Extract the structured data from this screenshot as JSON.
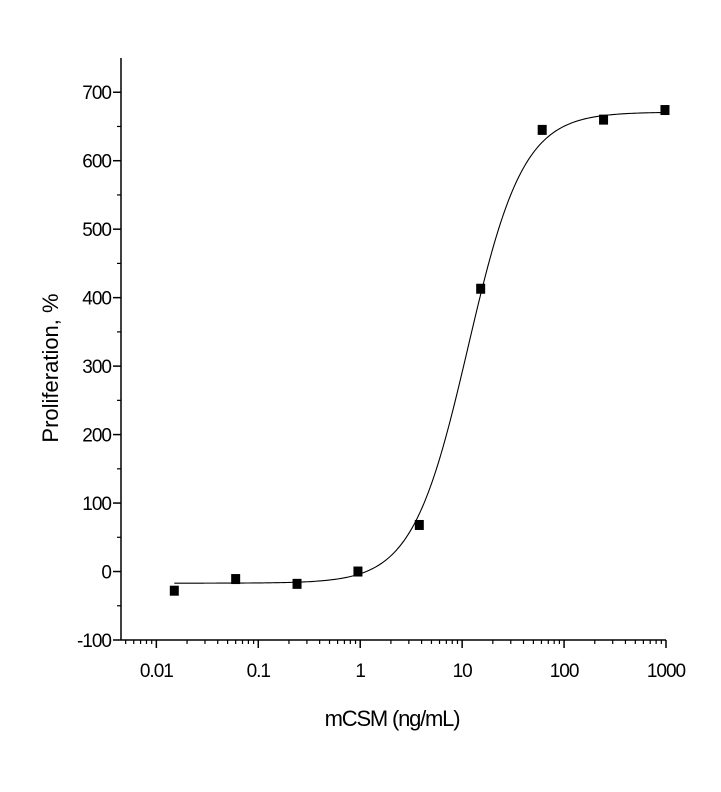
{
  "chart_data": {
    "type": "scatter",
    "title": "",
    "xlabel": "mCSM (ng/mL)",
    "ylabel": "Proliferation, %",
    "x_scale": "log",
    "xlim": [
      0.0045,
      1000
    ],
    "ylim": [
      -100,
      750
    ],
    "x_ticks": [
      0.01,
      0.1,
      1,
      10,
      100,
      1000
    ],
    "x_tick_labels": [
      "0.01",
      "0.1",
      "1",
      "10",
      "100",
      "1000"
    ],
    "y_ticks": [
      -100,
      0,
      100,
      200,
      300,
      400,
      500,
      600,
      700
    ],
    "y_tick_labels": [
      "-100",
      "0",
      "100",
      "200",
      "300",
      "400",
      "500",
      "600",
      "700"
    ],
    "grid": false,
    "legend": "none",
    "series": [
      {
        "x": [
          0.015,
          0.06,
          0.24,
          0.95,
          3.8,
          15.2,
          61,
          244,
          977
        ],
        "y": [
          -28,
          -11,
          -18,
          0,
          68,
          413,
          645,
          660,
          674
        ],
        "marker": "square",
        "color": "#000000"
      }
    ],
    "fit_curve": {
      "model": "4PL",
      "bottom": -17,
      "top": 671,
      "ec50": 11.4,
      "hill": 1.6
    }
  }
}
